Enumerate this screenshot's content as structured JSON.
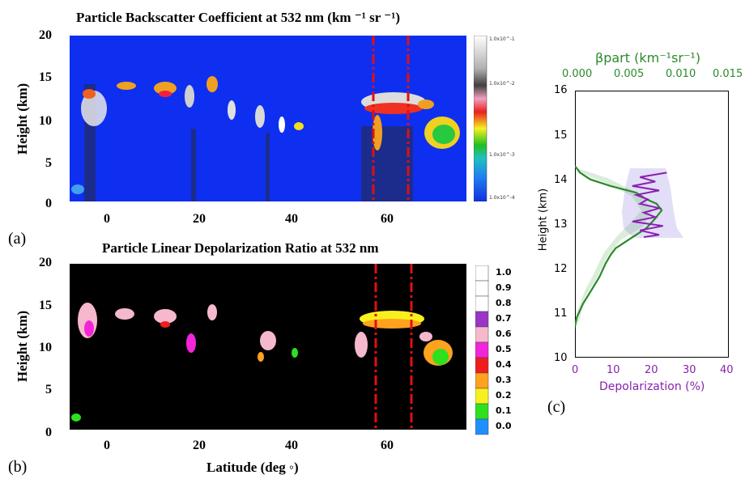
{
  "panel_a": {
    "title": "Particle Backscatter Coefficient at 532 nm (km ⁻¹ sr ⁻¹)",
    "ylabel": "Height (km)",
    "yticks": [
      "20",
      "15",
      "10",
      "5",
      "0"
    ],
    "xticks": [
      "0",
      "20",
      "40",
      "60"
    ],
    "letter": "(a)",
    "colorbar_labels": [
      "1.0x10^-1",
      "1.0x10^-2",
      "1.0x10^-3",
      "1.0x10^-4"
    ],
    "colors": {
      "background": "#0f2ff0",
      "marker": "#e01010"
    }
  },
  "panel_b": {
    "title": "Particle Linear Depolarization Ratio at 532 nm",
    "ylabel": "Height (km)",
    "yticks": [
      "20",
      "15",
      "10",
      "5",
      "0"
    ],
    "xticks": [
      "0",
      "20",
      "40",
      "60"
    ],
    "xlabel": "Latitude (deg ◦)",
    "letter": "(b)",
    "colorbar_labels": [
      "1.0",
      "0.9",
      "0.8",
      "0.7",
      "0.6",
      "0.5",
      "0.4",
      "0.3",
      "0.2",
      "0.1",
      "0.0"
    ],
    "colorbar_colors": [
      "#ffffff",
      "#ffffff",
      "#ffffff",
      "#9a35c8",
      "#f6b8cc",
      "#f225d8",
      "#ee1e1e",
      "#ffa21e",
      "#f8f01e",
      "#2ee01e",
      "#1e90ff"
    ],
    "colors": {
      "background": "#000000",
      "marker": "#e01010"
    }
  },
  "panel_c": {
    "letter": "(c)",
    "top_label": "βpart (km⁻¹sr⁻¹)",
    "top_ticks": [
      "0.000",
      "0.005",
      "0.010",
      "0.015"
    ],
    "bottom_label": "Depolarization (%)",
    "bottom_ticks": [
      "0",
      "10",
      "20",
      "30",
      "40"
    ],
    "ylabel": "Height (km)",
    "yticks": [
      "16",
      "15",
      "14",
      "13",
      "12",
      "11",
      "10"
    ],
    "colors": {
      "beta": "#2a8a2a",
      "depol": "#8a20b0"
    }
  },
  "chart_data": [
    {
      "type": "heatmap",
      "title": "Particle Backscatter Coefficient at 532 nm (km ⁻¹ sr ⁻¹)",
      "xlabel": "",
      "ylabel": "Height (km)",
      "xlim": [
        -8,
        76
      ],
      "ylim": [
        0,
        20
      ],
      "x_ticks": [
        0,
        20,
        40,
        60
      ],
      "y_ticks": [
        0,
        5,
        10,
        15,
        20
      ],
      "colorbar_range": [
        0.0001,
        0.1
      ],
      "colorbar_scale": "log",
      "marked_latitudes": [
        56.5,
        63.5
      ]
    },
    {
      "type": "heatmap",
      "title": "Particle Linear Depolarization Ratio at 532 nm",
      "xlabel": "Latitude (deg ◦)",
      "ylabel": "Height (km)",
      "xlim": [
        -8,
        76
      ],
      "ylim": [
        0,
        20
      ],
      "x_ticks": [
        0,
        20,
        40,
        60
      ],
      "y_ticks": [
        0,
        5,
        10,
        15,
        20
      ],
      "colorbar_range": [
        0.0,
        1.0
      ],
      "marked_latitudes": [
        57.3,
        64.3
      ]
    },
    {
      "type": "line",
      "xlabel_top": "βpart (km⁻¹sr⁻¹)",
      "xlabel_bottom": "Depolarization (%)",
      "ylabel": "Height (km)",
      "ylim": [
        10,
        16
      ],
      "xlim_top": [
        0,
        0.015
      ],
      "xlim_bottom": [
        0,
        40
      ],
      "series": [
        {
          "axis": "top",
          "color": "#2a8a2a",
          "x": [
            0.0,
            0.0005,
            0.0015,
            0.0035,
            0.006,
            0.007,
            0.008,
            0.0085,
            0.0078,
            0.007,
            0.006,
            0.005,
            0.004,
            0.0035,
            0.003,
            0.0027,
            0.0024,
            0.002,
            0.0016,
            0.0012,
            0.0008,
            0.0005,
            0.0002,
            0.0
          ],
          "y": [
            14.3,
            14.15,
            14.0,
            13.85,
            13.7,
            13.55,
            13.45,
            13.3,
            13.1,
            12.9,
            12.75,
            12.6,
            12.45,
            12.3,
            12.1,
            11.95,
            11.8,
            11.65,
            11.5,
            11.35,
            11.2,
            11.05,
            10.9,
            10.7
          ]
        },
        {
          "axis": "bottom",
          "color": "#8a20b0",
          "x": [
            24,
            17,
            21,
            15,
            22,
            16,
            19,
            17,
            22,
            18,
            21,
            15,
            23,
            17,
            22,
            18
          ],
          "y": [
            14.15,
            14.05,
            13.95,
            13.85,
            13.75,
            13.65,
            13.55,
            13.45,
            13.35,
            13.25,
            13.15,
            13.05,
            12.95,
            12.85,
            12.75,
            12.7
          ]
        }
      ]
    }
  ]
}
